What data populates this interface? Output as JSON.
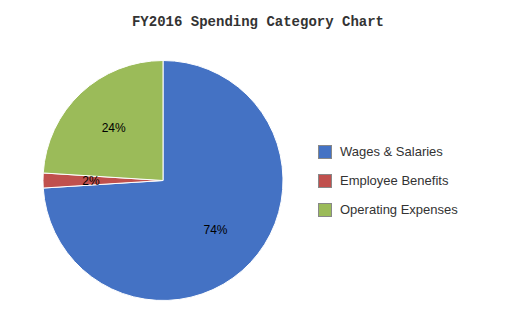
{
  "chart_data": {
    "type": "pie",
    "title": "FY2016 Spending Category Chart",
    "categories": [
      "Wages & Salaries",
      "Employee Benefits",
      "Operating Expenses"
    ],
    "values": [
      74,
      2,
      24
    ],
    "value_labels": [
      "74%",
      "2%",
      "24%"
    ],
    "colors": [
      "#4472C4",
      "#C0504D",
      "#9BBB59"
    ],
    "data_labels": true,
    "legend": "right"
  }
}
